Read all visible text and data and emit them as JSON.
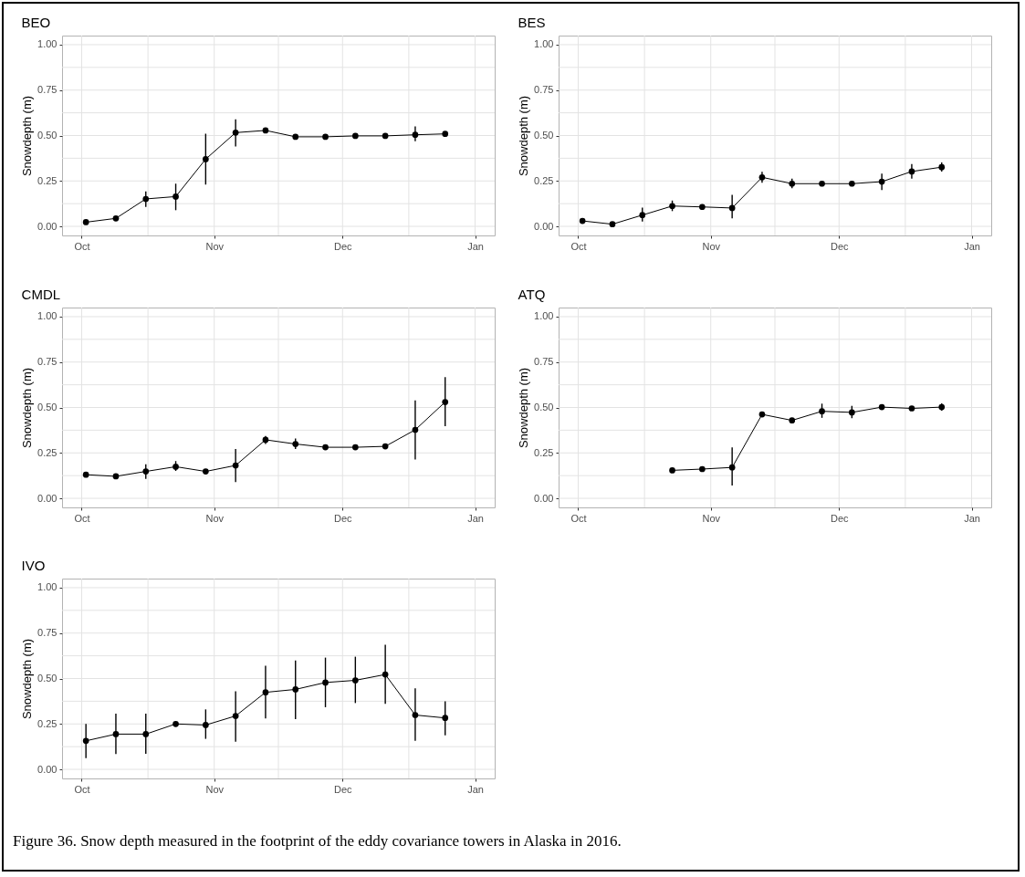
{
  "chart_data": [
    {
      "type": "line",
      "title": "BEO",
      "ylabel": "Snowdepth (m)",
      "marker": "circle",
      "line_style": "solid",
      "grid": true,
      "xlim": [
        "2016-09-26T10:00",
        "2017-01-05T14:00"
      ],
      "ylim": [
        -0.05,
        1.05
      ],
      "xticks": [
        {
          "value": "2016-10-01",
          "label": "Oct"
        },
        {
          "value": "2016-10-16T12:00",
          "label": null
        },
        {
          "value": "2016-11-01",
          "label": "Nov"
        },
        {
          "value": "2016-11-16",
          "label": null
        },
        {
          "value": "2016-12-01",
          "label": "Dec"
        },
        {
          "value": "2016-12-16T12:00",
          "label": null
        },
        {
          "value": "2017-01-01",
          "label": "Jan"
        }
      ],
      "yticks": [
        {
          "value": 0,
          "label": "0.00"
        },
        {
          "value": 0.125,
          "label": null
        },
        {
          "value": 0.25,
          "label": "0.25"
        },
        {
          "value": 0.375,
          "label": null
        },
        {
          "value": 0.5,
          "label": "0.50"
        },
        {
          "value": 0.625,
          "label": null
        },
        {
          "value": 0.75,
          "label": "0.75"
        },
        {
          "value": 0.875,
          "label": null
        },
        {
          "value": 1,
          "label": "1.00"
        }
      ],
      "x": [
        "2016-10-02",
        "2016-10-09",
        "2016-10-16",
        "2016-10-23",
        "2016-10-30",
        "2016-11-06",
        "2016-11-13",
        "2016-11-20",
        "2016-11-27",
        "2016-12-04",
        "2016-12-11",
        "2016-12-18",
        "2016-12-25"
      ],
      "series": [
        {
          "color": "#000000",
          "values": [
            0.023,
            0.044,
            0.151,
            0.164,
            0.37,
            0.516,
            0.528,
            0.493,
            0.493,
            0.498,
            0.498,
            0.504,
            0.509
          ],
          "errors": [
            null,
            null,
            [
              0.107,
              0.192
            ],
            [
              0.089,
              0.235
            ],
            [
              0.23,
              0.51
            ],
            [
              0.44,
              0.589
            ],
            null,
            null,
            null,
            null,
            null,
            [
              0.468,
              0.55
            ],
            null
          ]
        }
      ]
    },
    {
      "type": "line",
      "title": "BES",
      "ylabel": "Snowdepth (m)",
      "marker": "circle",
      "line_style": "solid",
      "grid": true,
      "xlim": [
        "2016-09-26T10:00",
        "2017-01-05T14:00"
      ],
      "ylim": [
        -0.05,
        1.05
      ],
      "xticks": [
        {
          "value": "2016-10-01",
          "label": "Oct"
        },
        {
          "value": "2016-10-16T12:00",
          "label": null
        },
        {
          "value": "2016-11-01",
          "label": "Nov"
        },
        {
          "value": "2016-11-16",
          "label": null
        },
        {
          "value": "2016-12-01",
          "label": "Dec"
        },
        {
          "value": "2016-12-16T12:00",
          "label": null
        },
        {
          "value": "2017-01-01",
          "label": "Jan"
        }
      ],
      "yticks": [
        {
          "value": 0,
          "label": "0.00"
        },
        {
          "value": 0.125,
          "label": null
        },
        {
          "value": 0.25,
          "label": "0.25"
        },
        {
          "value": 0.375,
          "label": null
        },
        {
          "value": 0.5,
          "label": "0.50"
        },
        {
          "value": 0.625,
          "label": null
        },
        {
          "value": 0.75,
          "label": "0.75"
        },
        {
          "value": 0.875,
          "label": null
        },
        {
          "value": 1,
          "label": "1.00"
        }
      ],
      "x": [
        "2016-10-02",
        "2016-10-09",
        "2016-10-16",
        "2016-10-23",
        "2016-10-30",
        "2016-11-06",
        "2016-11-13",
        "2016-11-20",
        "2016-11-27",
        "2016-12-04",
        "2016-12-11",
        "2016-12-18",
        "2016-12-25"
      ],
      "series": [
        {
          "color": "#000000",
          "values": [
            0.03,
            0.012,
            0.062,
            0.112,
            0.107,
            0.101,
            0.27,
            0.235,
            0.235,
            0.235,
            0.246,
            0.302,
            0.326
          ],
          "errors": [
            null,
            null,
            [
              0.027,
              0.103
            ],
            [
              0.084,
              0.142
            ],
            null,
            [
              0.044,
              0.174
            ],
            [
              0.24,
              0.3
            ],
            [
              0.21,
              0.263
            ],
            null,
            null,
            [
              0.2,
              0.29
            ],
            [
              0.263,
              0.343
            ],
            [
              0.302,
              0.352
            ]
          ]
        }
      ]
    },
    {
      "type": "line",
      "title": "CMDL",
      "ylabel": "Snowdepth (m)",
      "marker": "circle",
      "line_style": "solid",
      "grid": true,
      "xlim": [
        "2016-09-26T10:00",
        "2017-01-05T14:00"
      ],
      "ylim": [
        -0.05,
        1.05
      ],
      "xticks": [
        {
          "value": "2016-10-01",
          "label": "Oct"
        },
        {
          "value": "2016-10-16T12:00",
          "label": null
        },
        {
          "value": "2016-11-01",
          "label": "Nov"
        },
        {
          "value": "2016-11-16",
          "label": null
        },
        {
          "value": "2016-12-01",
          "label": "Dec"
        },
        {
          "value": "2016-12-16T12:00",
          "label": null
        },
        {
          "value": "2017-01-01",
          "label": "Jan"
        }
      ],
      "yticks": [
        {
          "value": 0,
          "label": "0.00"
        },
        {
          "value": 0.125,
          "label": null
        },
        {
          "value": 0.25,
          "label": "0.25"
        },
        {
          "value": 0.375,
          "label": null
        },
        {
          "value": 0.5,
          "label": "0.50"
        },
        {
          "value": 0.625,
          "label": null
        },
        {
          "value": 0.75,
          "label": "0.75"
        },
        {
          "value": 0.875,
          "label": null
        },
        {
          "value": 1,
          "label": "1.00"
        }
      ],
      "x": [
        "2016-10-02",
        "2016-10-09",
        "2016-10-16",
        "2016-10-23",
        "2016-10-30",
        "2016-11-06",
        "2016-11-13",
        "2016-11-20",
        "2016-11-27",
        "2016-12-04",
        "2016-12-11",
        "2016-12-18",
        "2016-12-25"
      ],
      "series": [
        {
          "color": "#000000",
          "values": [
            0.13,
            0.121,
            0.148,
            0.174,
            0.148,
            0.181,
            0.322,
            0.299,
            0.281,
            0.281,
            0.286,
            0.377,
            0.53
          ],
          "errors": [
            null,
            null,
            [
              0.107,
              0.187
            ],
            [
              0.151,
              0.205
            ],
            null,
            [
              0.089,
              0.272
            ],
            [
              0.299,
              0.343
            ],
            [
              0.272,
              0.329
            ],
            null,
            null,
            null,
            [
              0.214,
              0.539
            ],
            [
              0.397,
              0.667
            ]
          ]
        }
      ]
    },
    {
      "type": "line",
      "title": "ATQ",
      "ylabel": "Snowdepth (m)",
      "marker": "circle",
      "line_style": "solid",
      "grid": true,
      "xlim": [
        "2016-09-26T10:00",
        "2017-01-05T14:00"
      ],
      "ylim": [
        -0.05,
        1.05
      ],
      "xticks": [
        {
          "value": "2016-10-01",
          "label": "Oct"
        },
        {
          "value": "2016-10-16T12:00",
          "label": null
        },
        {
          "value": "2016-11-01",
          "label": "Nov"
        },
        {
          "value": "2016-11-16",
          "label": null
        },
        {
          "value": "2016-12-01",
          "label": "Dec"
        },
        {
          "value": "2016-12-16T12:00",
          "label": null
        },
        {
          "value": "2017-01-01",
          "label": "Jan"
        }
      ],
      "yticks": [
        {
          "value": 0,
          "label": "0.00"
        },
        {
          "value": 0.125,
          "label": null
        },
        {
          "value": 0.25,
          "label": "0.25"
        },
        {
          "value": 0.375,
          "label": null
        },
        {
          "value": 0.5,
          "label": "0.50"
        },
        {
          "value": 0.625,
          "label": null
        },
        {
          "value": 0.75,
          "label": "0.75"
        },
        {
          "value": 0.875,
          "label": null
        },
        {
          "value": 1,
          "label": "1.00"
        }
      ],
      "x": [
        "2016-10-23",
        "2016-10-30",
        "2016-11-06",
        "2016-11-13",
        "2016-11-20",
        "2016-11-27",
        "2016-12-04",
        "2016-12-11",
        "2016-12-18",
        "2016-12-25"
      ],
      "series": [
        {
          "color": "#000000",
          "values": [
            0.154,
            0.161,
            0.17,
            0.462,
            0.429,
            0.479,
            0.473,
            0.502,
            0.495,
            0.502
          ],
          "errors": [
            null,
            null,
            [
              0.071,
              0.28
            ],
            null,
            null,
            [
              0.443,
              0.521
            ],
            [
              0.441,
              0.509
            ],
            null,
            null,
            [
              0.482,
              0.523
            ]
          ]
        }
      ]
    },
    {
      "type": "line",
      "title": "IVO",
      "ylabel": "Snowdepth (m)",
      "marker": "circle",
      "line_style": "solid",
      "grid": true,
      "xlim": [
        "2016-09-26T10:00",
        "2017-01-05T14:00"
      ],
      "ylim": [
        -0.05,
        1.05
      ],
      "xticks": [
        {
          "value": "2016-10-01",
          "label": "Oct"
        },
        {
          "value": "2016-10-16T12:00",
          "label": null
        },
        {
          "value": "2016-11-01",
          "label": "Nov"
        },
        {
          "value": "2016-11-16",
          "label": null
        },
        {
          "value": "2016-12-01",
          "label": "Dec"
        },
        {
          "value": "2016-12-16T12:00",
          "label": null
        },
        {
          "value": "2017-01-01",
          "label": "Jan"
        }
      ],
      "yticks": [
        {
          "value": 0,
          "label": "0.00"
        },
        {
          "value": 0.125,
          "label": null
        },
        {
          "value": 0.25,
          "label": "0.25"
        },
        {
          "value": 0.375,
          "label": null
        },
        {
          "value": 0.5,
          "label": "0.50"
        },
        {
          "value": 0.625,
          "label": null
        },
        {
          "value": 0.75,
          "label": "0.75"
        },
        {
          "value": 0.875,
          "label": null
        },
        {
          "value": 1,
          "label": "1.00"
        }
      ],
      "x": [
        "2016-10-02",
        "2016-10-09",
        "2016-10-16",
        "2016-10-23",
        "2016-10-30",
        "2016-11-06",
        "2016-11-13",
        "2016-11-20",
        "2016-11-27",
        "2016-12-04",
        "2016-12-11",
        "2016-12-18",
        "2016-12-25"
      ],
      "series": [
        {
          "color": "#000000",
          "values": [
            0.157,
            0.194,
            0.194,
            0.25,
            0.244,
            0.294,
            0.424,
            0.44,
            0.478,
            0.49,
            0.522,
            0.299,
            0.283
          ],
          "errors": [
            [
              0.062,
              0.25
            ],
            [
              0.084,
              0.307
            ],
            [
              0.086,
              0.307
            ],
            null,
            [
              0.168,
              0.33
            ],
            [
              0.152,
              0.43
            ],
            [
              0.28,
              0.57
            ],
            [
              0.276,
              0.599
            ],
            [
              0.342,
              0.615
            ],
            [
              0.365,
              0.62
            ],
            [
              0.36,
              0.686
            ],
            [
              0.157,
              0.446
            ],
            [
              0.187,
              0.374
            ]
          ]
        }
      ],
      "annotations": [
        "Figure 36. Snow depth measured in the footprint of the eddy covariance towers in Alaska in 2016."
      ]
    }
  ]
}
